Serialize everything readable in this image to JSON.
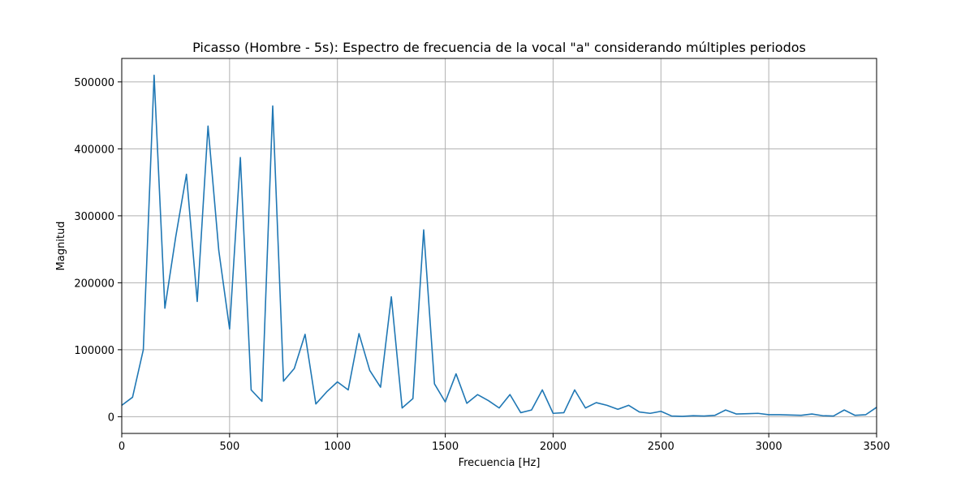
{
  "chart_data": {
    "type": "line",
    "title": "Picasso (Hombre - 5s): Espectro de frecuencia de la vocal \"a\" considerando múltiples periodos",
    "xlabel": "Frecuencia [Hz]",
    "ylabel": "Magnitud",
    "xlim": [
      0,
      3500
    ],
    "ylim": [
      -25000,
      535000
    ],
    "grid": true,
    "xticks": [
      0,
      500,
      1000,
      1500,
      2000,
      2500,
      3000,
      3500
    ],
    "xtick_labels": [
      "0",
      "500",
      "1000",
      "1500",
      "2000",
      "2500",
      "3000",
      "3500"
    ],
    "yticks": [
      0,
      100000,
      200000,
      300000,
      400000,
      500000
    ],
    "ytick_labels": [
      "0",
      "100000",
      "200000",
      "300000",
      "400000",
      "500000"
    ],
    "series": [
      {
        "color": "#1f77b4",
        "x": [
          0,
          50,
          100,
          150,
          200,
          250,
          300,
          350,
          400,
          450,
          500,
          550,
          600,
          650,
          700,
          750,
          800,
          850,
          900,
          950,
          1000,
          1050,
          1100,
          1150,
          1200,
          1250,
          1300,
          1350,
          1400,
          1450,
          1500,
          1550,
          1600,
          1650,
          1700,
          1750,
          1800,
          1850,
          1900,
          1950,
          2000,
          2050,
          2100,
          2150,
          2200,
          2250,
          2300,
          2350,
          2400,
          2450,
          2500,
          2550,
          2600,
          2650,
          2700,
          2750,
          2800,
          2850,
          2900,
          2950,
          3000,
          3050,
          3100,
          3150,
          3200,
          3250,
          3300,
          3350,
          3400,
          3450,
          3500
        ],
        "y": [
          17000,
          29000,
          100000,
          510000,
          162000,
          268000,
          362000,
          172000,
          434000,
          248000,
          131000,
          387000,
          40000,
          23000,
          464000,
          53000,
          72000,
          123000,
          19000,
          37000,
          52000,
          40000,
          124000,
          69000,
          44000,
          179000,
          13000,
          27000,
          279000,
          49000,
          22000,
          64000,
          20000,
          33000,
          24000,
          13000,
          33000,
          6000,
          10000,
          40000,
          5000,
          6000,
          40000,
          13000,
          21000,
          17000,
          11000,
          17000,
          7000,
          5000,
          8000,
          1000,
          500,
          1500,
          1000,
          2000,
          10000,
          4000,
          4500,
          5000,
          3000,
          3000,
          2500,
          2000,
          4000,
          1500,
          1000,
          10000,
          2000,
          3000,
          14000
        ]
      }
    ]
  }
}
